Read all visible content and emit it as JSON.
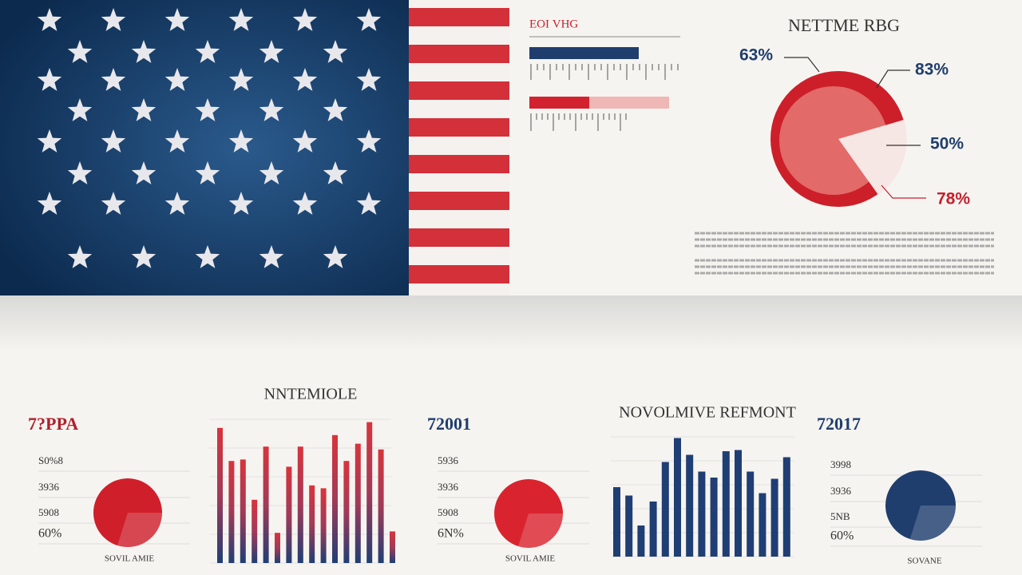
{
  "top_panel": {
    "label": "ΕΟΙ VΗG"
  },
  "pie": {
    "title": "NETTME RBG",
    "labels": [
      "63%",
      "83%",
      "50%",
      "78%"
    ]
  },
  "stats": [
    {
      "heading": "7?PPA",
      "labels": [
        "S0%8",
        "3936",
        "5908",
        "60%"
      ],
      "caption": "SOVIL AMIE"
    },
    {
      "heading": "72001",
      "labels": [
        "5936",
        "3936",
        "5908",
        "6N%"
      ],
      "caption": "SOVIL AMIE"
    },
    {
      "heading": "72017",
      "labels": [
        "3998",
        "3936",
        "5NB",
        "60%"
      ],
      "caption": "SOVANE"
    }
  ],
  "charts": [
    {
      "title": "NNTEMIOLE",
      "values": [
        94,
        71,
        72,
        44,
        81,
        21,
        67,
        81,
        54,
        52,
        89,
        71,
        83,
        98,
        79,
        22
      ]
    },
    {
      "title": "NOVOLMIVE REFMONT",
      "values": [
        58,
        51,
        26,
        46,
        79,
        99,
        85,
        71,
        66,
        88,
        89,
        71,
        53,
        65,
        83
      ]
    }
  ]
}
